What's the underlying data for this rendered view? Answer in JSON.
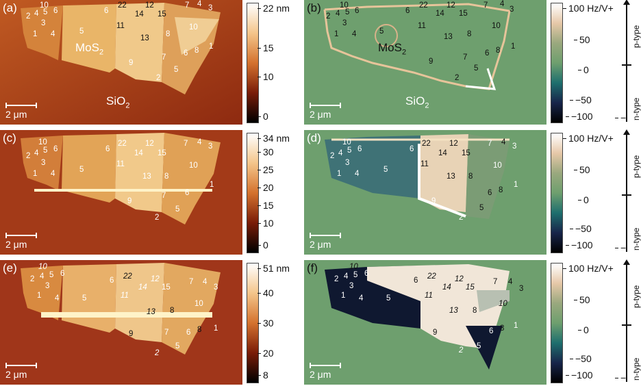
{
  "panels": {
    "a": {
      "label": "(a)",
      "mos2": "MoS",
      "mos2_sub": "2",
      "sio2": "SiO",
      "sio2_sub": "2",
      "scale": "2 μm"
    },
    "b": {
      "label": "(b)",
      "mos2": "MoS",
      "mos2_sub": "2",
      "sio2": "SiO",
      "sio2_sub": "2",
      "scale": "2 μm"
    },
    "c": {
      "label": "(c)",
      "scale": "2 μm"
    },
    "d": {
      "label": "(d)",
      "scale": "2 μm"
    },
    "e": {
      "label": "(e)",
      "scale": "2 μm"
    },
    "f": {
      "label": "(f)",
      "scale": "2 μm"
    }
  },
  "region_numbers": {
    "a": [
      "10",
      "2",
      "4",
      "5",
      "6",
      "3",
      "1",
      "4",
      "5",
      "6",
      "22",
      "12",
      "14",
      "15",
      "11",
      "7",
      "4",
      "3",
      "10",
      "8",
      "13",
      "1",
      "6",
      "8",
      "9",
      "7",
      "5",
      "2"
    ],
    "b": [
      "10",
      "2",
      "4",
      "5",
      "6",
      "3",
      "1",
      "4",
      "5",
      "6",
      "22",
      "12",
      "14",
      "15",
      "11",
      "7",
      "4",
      "3",
      "10",
      "8",
      "13",
      "1",
      "6",
      "8",
      "7",
      "9",
      "5",
      "2"
    ],
    "c": [
      "10",
      "2",
      "4",
      "5",
      "6",
      "3",
      "1",
      "4",
      "5",
      "6",
      "22",
      "12",
      "14",
      "15",
      "11",
      "7",
      "4",
      "3",
      "10",
      "13",
      "8",
      "1",
      "6",
      "9",
      "7",
      "5",
      "2"
    ],
    "d": [
      "10",
      "2",
      "4",
      "5",
      "6",
      "3",
      "1",
      "4",
      "5",
      "6",
      "22",
      "12",
      "14",
      "15",
      "11",
      "7",
      "4",
      "3",
      "10",
      "13",
      "8",
      "1",
      "6",
      "8",
      "9",
      "5",
      "2"
    ],
    "e": [
      "10",
      "2",
      "4",
      "5",
      "6",
      "3",
      "1",
      "4",
      "5",
      "6",
      "22",
      "12",
      "14",
      "11",
      "15",
      "7",
      "4",
      "3",
      "10",
      "13",
      "8",
      "1",
      "6",
      "8",
      "9",
      "7",
      "5",
      "2"
    ],
    "f": [
      "10",
      "2",
      "4",
      "5",
      "6",
      "3",
      "1",
      "4",
      "5",
      "6",
      "22",
      "12",
      "14",
      "11",
      "15",
      "7",
      "4",
      "3",
      "10",
      "13",
      "8",
      "1",
      "6",
      "8",
      "9",
      "5",
      "2"
    ]
  },
  "colorbars": {
    "height1": {
      "ticks": [
        "22 nm",
        "15",
        "10",
        "0"
      ]
    },
    "height2": {
      "ticks": [
        "34 nm",
        "30",
        "25",
        "20",
        "15",
        "10",
        "0"
      ]
    },
    "height3": {
      "ticks": [
        "51 nm",
        "40",
        "30",
        "20",
        "8"
      ]
    },
    "kpfm": {
      "ticks": [
        "100 Hz/V",
        "50",
        "0",
        "−50",
        "−100"
      ],
      "plus": "+",
      "minus": "−"
    }
  },
  "type_axis": {
    "p": "p-type",
    "n": "n-type"
  },
  "colors": {
    "sio2_height": "#a93a16",
    "sio2_kpfm": "#6e9f6e",
    "dark_kpfm": "#0f1830"
  }
}
